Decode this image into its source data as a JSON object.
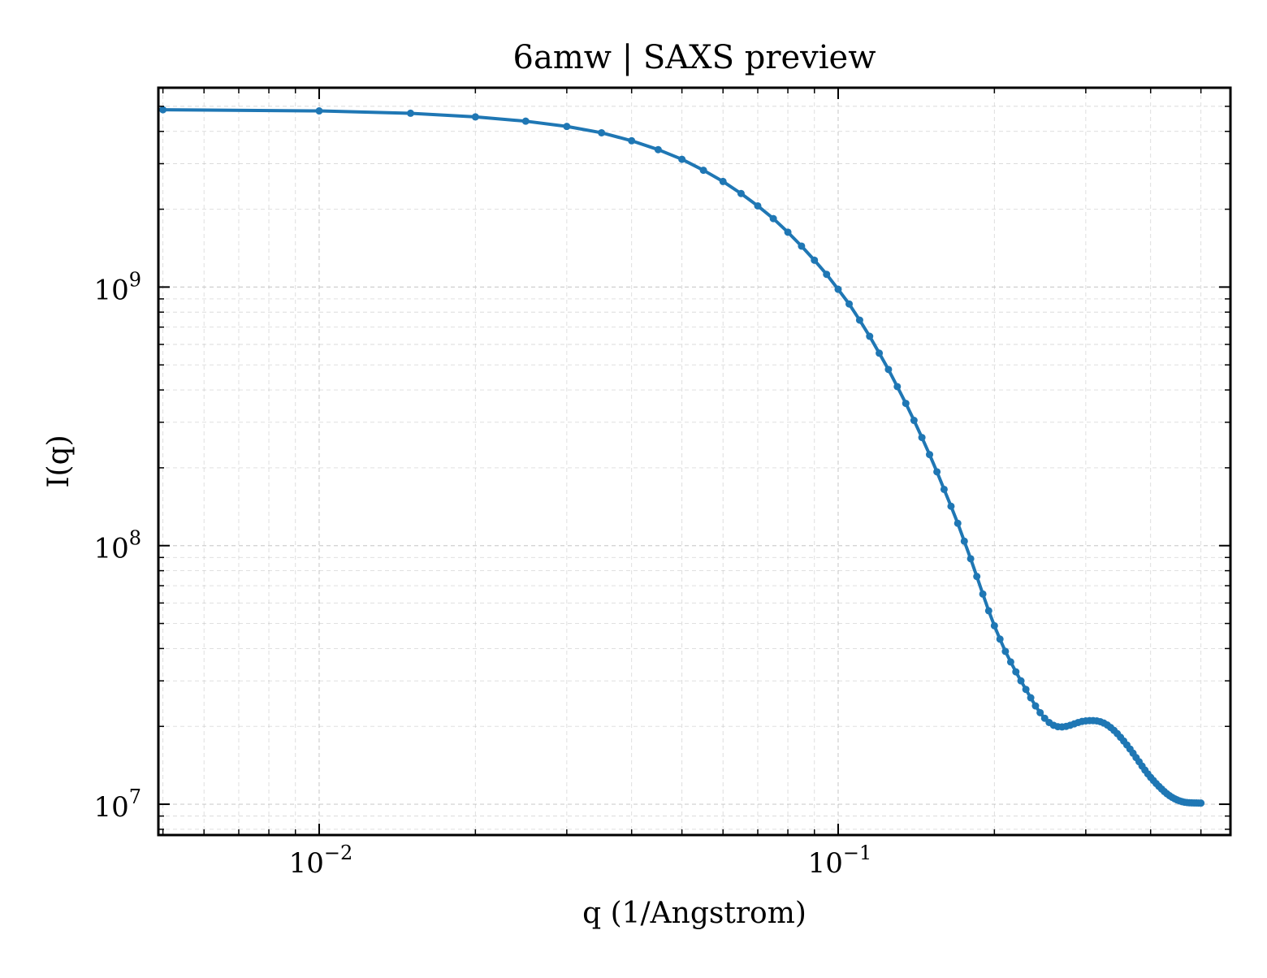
{
  "chart_data": {
    "type": "line",
    "title": "6amw | SAXS preview",
    "xlabel": "q (1/Angstrom)",
    "ylabel": "I(q)",
    "xscale": "log",
    "yscale": "log",
    "xlim": [
      0.0049,
      0.57
    ],
    "ylim": [
      7600000,
      5900000000
    ],
    "grid": true,
    "legend": "none",
    "series_color": "#1f77b4",
    "x_tick_labels": [
      {
        "value": 0.01,
        "base": "10",
        "exp": "−2"
      },
      {
        "value": 0.1,
        "base": "10",
        "exp": "−1"
      }
    ],
    "y_tick_labels": [
      {
        "value": 10000000,
        "base": "10",
        "exp": "7"
      },
      {
        "value": 100000000,
        "base": "10",
        "exp": "8"
      },
      {
        "value": 1000000000,
        "base": "10",
        "exp": "9"
      }
    ],
    "series": [
      {
        "x": [
          0.005,
          0.01,
          0.015,
          0.02,
          0.025,
          0.03,
          0.035,
          0.04,
          0.045,
          0.05,
          0.055,
          0.06,
          0.065,
          0.07,
          0.075,
          0.08,
          0.085,
          0.09,
          0.095,
          0.1,
          0.105,
          0.11,
          0.115,
          0.12,
          0.125,
          0.13,
          0.135,
          0.14,
          0.145,
          0.15,
          0.155,
          0.16,
          0.165,
          0.17,
          0.175,
          0.18,
          0.185,
          0.19,
          0.195,
          0.2,
          0.205,
          0.21,
          0.215,
          0.22,
          0.225,
          0.23,
          0.235,
          0.24,
          0.245,
          0.25,
          0.255,
          0.26,
          0.265,
          0.27,
          0.275,
          0.28,
          0.285,
          0.29,
          0.295,
          0.3,
          0.305,
          0.31,
          0.315,
          0.32,
          0.325,
          0.33,
          0.335,
          0.34,
          0.345,
          0.35,
          0.355,
          0.36,
          0.365,
          0.37,
          0.375,
          0.38,
          0.385,
          0.39,
          0.395,
          0.4,
          0.405,
          0.41,
          0.415,
          0.42,
          0.425,
          0.43,
          0.435,
          0.44,
          0.445,
          0.45,
          0.455,
          0.46,
          0.465,
          0.47,
          0.475,
          0.48,
          0.485,
          0.49,
          0.495,
          0.5
        ],
        "y": [
          4850000000,
          4800000000,
          4700000000,
          4550000000,
          4380000000,
          4180000000,
          3950000000,
          3680000000,
          3400000000,
          3120000000,
          2830000000,
          2560000000,
          2300000000,
          2060000000,
          1840000000,
          1630000000,
          1440000000,
          1270000000,
          1120000000,
          980000000,
          860000000,
          745000000,
          645000000,
          555000000,
          480000000,
          412000000,
          355000000,
          305000000,
          262000000,
          225000000,
          193000000,
          165000000,
          142000000,
          122000000,
          104000000,
          89000000,
          76000000,
          65000000,
          56000000,
          49000000,
          43500000,
          39000000,
          35500000,
          32500000,
          30000000,
          27800000,
          25800000,
          24000000,
          22600000,
          21500000,
          20700000,
          20200000,
          19950000,
          19900000,
          20000000,
          20200000,
          20450000,
          20700000,
          20900000,
          21000000,
          21050000,
          21050000,
          21000000,
          20850000,
          20600000,
          20250000,
          19800000,
          19300000,
          18750000,
          18150000,
          17550000,
          16950000,
          16350000,
          15750000,
          15150000,
          14600000,
          14050000,
          13550000,
          13100000,
          12700000,
          12350000,
          12020000,
          11720000,
          11450000,
          11200000,
          10980000,
          10790000,
          10630000,
          10500000,
          10390000,
          10300000,
          10230000,
          10180000,
          10150000,
          10130000,
          10120000,
          10115000,
          10110000,
          10105000,
          10100000
        ]
      }
    ]
  }
}
